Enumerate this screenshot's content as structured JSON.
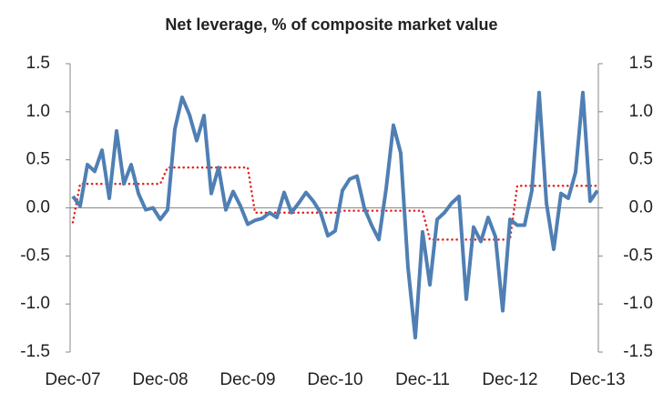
{
  "chart_data": {
    "type": "line",
    "title": "Net leverage, % of composite market value",
    "categories": [
      "Dec-07",
      null,
      null,
      null,
      null,
      null,
      null,
      null,
      null,
      null,
      null,
      null,
      "Dec-08",
      null,
      null,
      null,
      null,
      null,
      null,
      null,
      null,
      null,
      null,
      null,
      "Dec-09",
      null,
      null,
      null,
      null,
      null,
      null,
      null,
      null,
      null,
      null,
      null,
      "Dec-10",
      null,
      null,
      null,
      null,
      null,
      null,
      null,
      null,
      null,
      null,
      null,
      "Dec-11",
      null,
      null,
      null,
      null,
      null,
      null,
      null,
      null,
      null,
      null,
      null,
      "Dec-12",
      null,
      null,
      null,
      null,
      null,
      null,
      null,
      null,
      null,
      null,
      null,
      "Dec-13"
    ],
    "series": [
      {
        "color": "#4f7fb3",
        "style": "solid",
        "values": [
          0.12,
          0.02,
          0.45,
          0.38,
          0.6,
          0.1,
          0.8,
          0.25,
          0.45,
          0.15,
          -0.02,
          0.0,
          -0.12,
          -0.02,
          0.82,
          1.15,
          0.97,
          0.7,
          0.96,
          0.15,
          0.42,
          -0.02,
          0.17,
          0.02,
          -0.17,
          -0.13,
          -0.11,
          -0.05,
          -0.1,
          0.16,
          -0.05,
          0.05,
          0.16,
          0.07,
          -0.05,
          -0.29,
          -0.24,
          0.18,
          0.3,
          0.33,
          0.0,
          -0.18,
          -0.33,
          0.2,
          0.86,
          0.57,
          -0.62,
          -1.35,
          -0.25,
          -0.8,
          -0.12,
          -0.05,
          0.05,
          0.12,
          -0.95,
          -0.2,
          -0.35,
          -0.1,
          -0.3,
          -1.07,
          -0.12,
          -0.18,
          -0.18,
          0.18,
          1.2,
          0.05,
          -0.43,
          0.15,
          0.1,
          0.37,
          1.2,
          0.07,
          0.18
        ]
      },
      {
        "color": "#e8201e",
        "style": "dotted",
        "values": [
          -0.15,
          0.25,
          0.25,
          0.25,
          0.25,
          0.25,
          0.25,
          0.25,
          0.25,
          0.25,
          0.25,
          0.25,
          0.25,
          0.42,
          0.42,
          0.42,
          0.42,
          0.42,
          0.42,
          0.42,
          0.42,
          0.42,
          0.42,
          0.42,
          0.42,
          -0.05,
          -0.05,
          -0.05,
          -0.05,
          -0.05,
          -0.05,
          -0.05,
          -0.05,
          -0.05,
          -0.05,
          -0.05,
          -0.05,
          -0.03,
          -0.03,
          -0.03,
          -0.03,
          -0.03,
          -0.03,
          -0.03,
          -0.03,
          -0.03,
          -0.03,
          -0.03,
          -0.03,
          -0.33,
          -0.33,
          -0.33,
          -0.33,
          -0.33,
          -0.33,
          -0.33,
          -0.33,
          -0.33,
          -0.33,
          -0.33,
          -0.33,
          0.23,
          0.23,
          0.23,
          0.23,
          0.23,
          0.23,
          0.23,
          0.23,
          0.23,
          0.23,
          0.23,
          0.23
        ]
      }
    ],
    "ylim": [
      -1.5,
      1.5
    ],
    "yticks": [
      1.5,
      {
        "value": 1,
        "label": "1.0"
      },
      0.5,
      {
        "value": 0,
        "label": "0.0"
      },
      -0.5,
      {
        "value": -1,
        "label": "-1.0"
      },
      -1.5
    ],
    "y2lim": [
      -1.5,
      1.5
    ],
    "y2ticks": [
      1.5,
      {
        "value": 1,
        "label": "1.0"
      },
      0.5,
      {
        "value": 0,
        "label": "0.0"
      },
      -0.5,
      {
        "value": -1,
        "label": "-1.0"
      },
      -1.5
    ],
    "grid": false
  }
}
